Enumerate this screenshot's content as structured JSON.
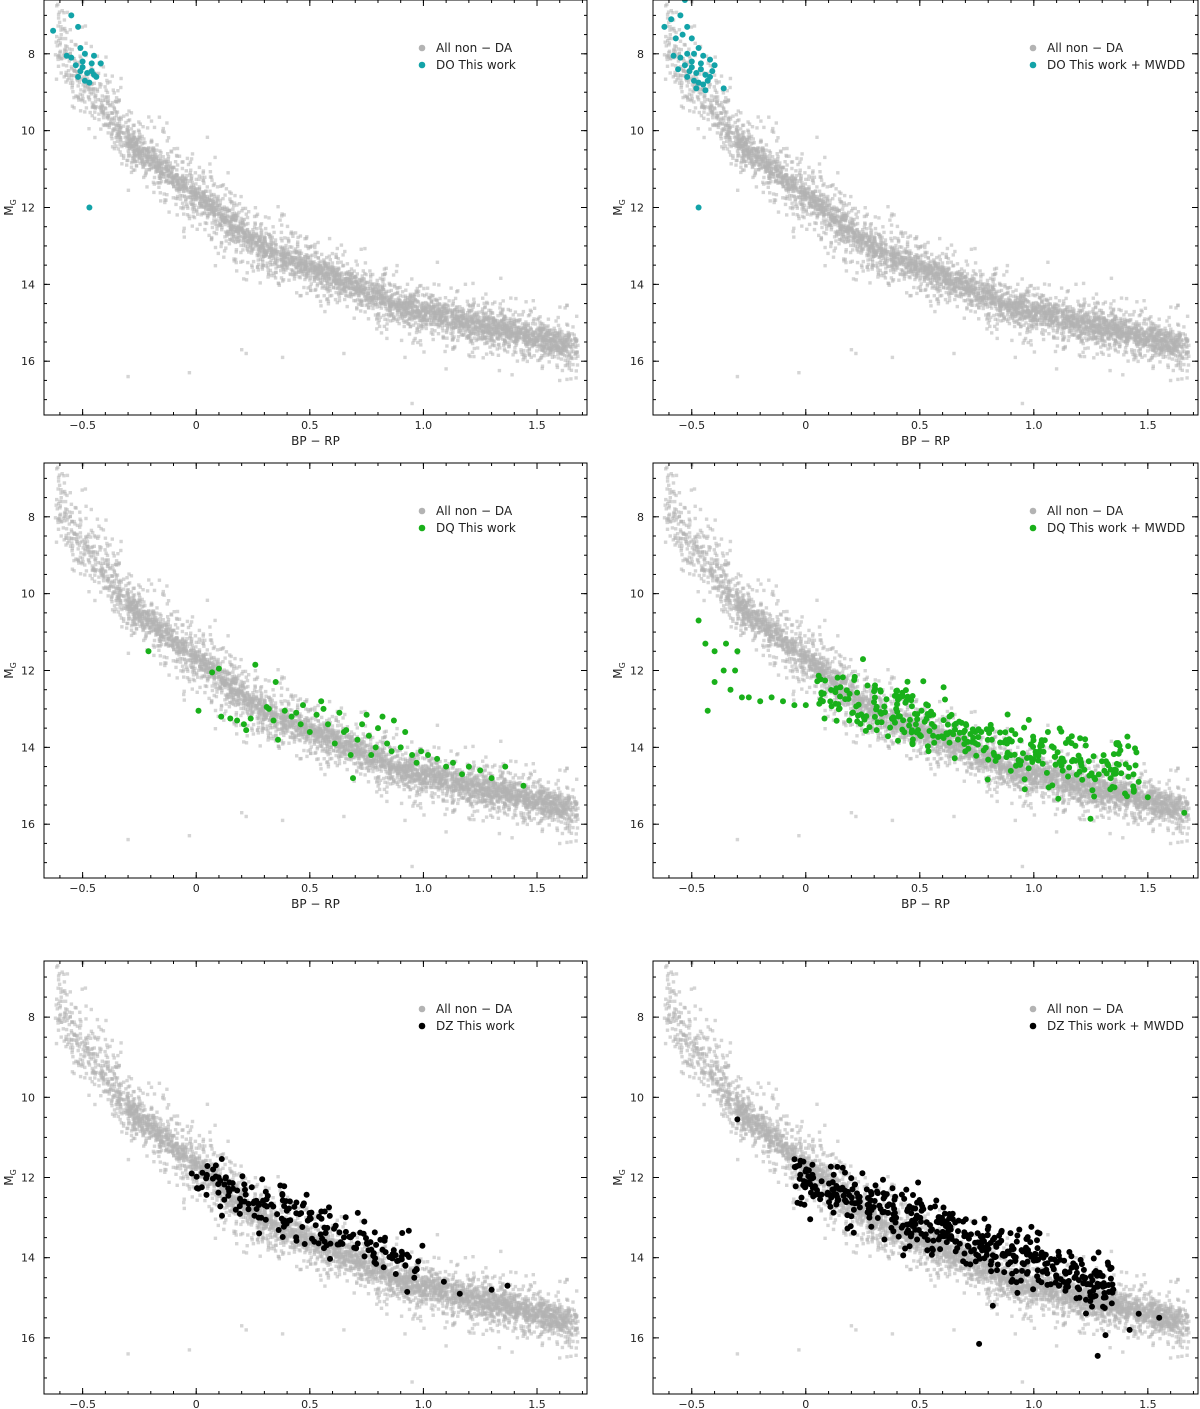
{
  "figure": {
    "colors": {
      "background_points": "#b3b3b3",
      "density_core": "#2b2b2b",
      "DO": "#13a3a8",
      "DQ": "#19b01a",
      "DZ": "#000000",
      "axes": "#000000"
    }
  },
  "chart_data": [
    {
      "id": "do-this-work",
      "type": "scatter",
      "xlabel": "BP − RP",
      "ylabel_main": "M",
      "ylabel_sub": "G",
      "xlim": [
        -0.67,
        1.72
      ],
      "ylim": [
        17.4,
        6.6
      ],
      "xticks": [
        -0.5,
        0,
        0.5,
        1.0,
        1.5
      ],
      "xtick_labels": [
        "−0.5",
        "0",
        "0.5",
        "1.0",
        "1.5"
      ],
      "yticks": [
        8,
        10,
        12,
        14,
        16
      ],
      "ytick_labels": [
        "8",
        "10",
        "12",
        "14",
        "16"
      ],
      "legend": [
        {
          "label": "All non − DA",
          "color": "#b3b3b3"
        },
        {
          "label": "DO  This work",
          "color": "#13a3a8"
        }
      ],
      "legend_position": "top-right",
      "highlight": {
        "class": "DO",
        "color": "#13a3a8",
        "points": [
          [
            -0.63,
            7.4
          ],
          [
            -0.55,
            7.0
          ],
          [
            -0.52,
            7.3
          ],
          [
            -0.57,
            8.05
          ],
          [
            -0.55,
            8.1
          ],
          [
            -0.51,
            7.85
          ],
          [
            -0.49,
            8.0
          ],
          [
            -0.45,
            8.05
          ],
          [
            -0.42,
            8.25
          ],
          [
            -0.53,
            8.3
          ],
          [
            -0.5,
            8.35
          ],
          [
            -0.48,
            8.5
          ],
          [
            -0.46,
            8.45
          ],
          [
            -0.44,
            8.6
          ],
          [
            -0.52,
            8.6
          ],
          [
            -0.49,
            8.7
          ],
          [
            -0.47,
            8.75
          ],
          [
            -0.45,
            8.55
          ],
          [
            -0.51,
            8.45
          ],
          [
            -0.46,
            8.25
          ],
          [
            -0.5,
            8.2
          ],
          [
            -0.47,
            12.0
          ]
        ]
      }
    },
    {
      "id": "do-this-work-mwdd",
      "type": "scatter",
      "xlabel": "BP − RP",
      "ylabel_main": "M",
      "ylabel_sub": "G",
      "xlim": [
        -0.67,
        1.72
      ],
      "ylim": [
        17.4,
        6.6
      ],
      "xticks": [
        -0.5,
        0,
        0.5,
        1.0,
        1.5
      ],
      "xtick_labels": [
        "−0.5",
        "0",
        "0.5",
        "1.0",
        "1.5"
      ],
      "yticks": [
        8,
        10,
        12,
        14,
        16
      ],
      "ytick_labels": [
        "8",
        "10",
        "12",
        "14",
        "16"
      ],
      "legend": [
        {
          "label": "All non − DA",
          "color": "#b3b3b3"
        },
        {
          "label": "DO  This work + MWDD",
          "color": "#13a3a8"
        }
      ],
      "legend_position": "top-right",
      "highlight": {
        "class": "DO",
        "color": "#13a3a8",
        "points": [
          [
            -0.53,
            6.6
          ],
          [
            -0.62,
            7.3
          ],
          [
            -0.59,
            7.1
          ],
          [
            -0.55,
            7.0
          ],
          [
            -0.52,
            7.3
          ],
          [
            -0.57,
            7.6
          ],
          [
            -0.54,
            7.5
          ],
          [
            -0.5,
            7.6
          ],
          [
            -0.47,
            7.85
          ],
          [
            -0.58,
            8.05
          ],
          [
            -0.55,
            8.1
          ],
          [
            -0.52,
            8.0
          ],
          [
            -0.49,
            8.0
          ],
          [
            -0.45,
            8.05
          ],
          [
            -0.42,
            8.15
          ],
          [
            -0.4,
            8.3
          ],
          [
            -0.53,
            8.3
          ],
          [
            -0.5,
            8.35
          ],
          [
            -0.48,
            8.5
          ],
          [
            -0.46,
            8.4
          ],
          [
            -0.44,
            8.55
          ],
          [
            -0.42,
            8.6
          ],
          [
            -0.52,
            8.6
          ],
          [
            -0.49,
            8.7
          ],
          [
            -0.47,
            8.75
          ],
          [
            -0.45,
            8.8
          ],
          [
            -0.43,
            8.7
          ],
          [
            -0.41,
            8.45
          ],
          [
            -0.51,
            8.45
          ],
          [
            -0.46,
            8.25
          ],
          [
            -0.5,
            8.2
          ],
          [
            -0.48,
            8.9
          ],
          [
            -0.44,
            8.95
          ],
          [
            -0.36,
            8.9
          ],
          [
            -0.56,
            8.4
          ],
          [
            -0.47,
            12.0
          ]
        ]
      }
    },
    {
      "id": "dq-this-work",
      "type": "scatter",
      "xlabel": "BP − RP",
      "ylabel_main": "M",
      "ylabel_sub": "G",
      "xlim": [
        -0.67,
        1.72
      ],
      "ylim": [
        17.4,
        6.6
      ],
      "xticks": [
        -0.5,
        0,
        0.5,
        1.0,
        1.5
      ],
      "xtick_labels": [
        "−0.5",
        "0",
        "0.5",
        "1.0",
        "1.5"
      ],
      "yticks": [
        8,
        10,
        12,
        14,
        16
      ],
      "ytick_labels": [
        "8",
        "10",
        "12",
        "14",
        "16"
      ],
      "legend": [
        {
          "label": "All non − DA",
          "color": "#b3b3b3"
        },
        {
          "label": "DQ  This work",
          "color": "#19b01a"
        }
      ],
      "legend_position": "top-right",
      "highlight": {
        "class": "DQ",
        "color": "#19b01a",
        "points": [
          [
            -0.21,
            11.5
          ],
          [
            0.07,
            12.05
          ],
          [
            0.1,
            11.95
          ],
          [
            0.01,
            13.05
          ],
          [
            0.11,
            13.2
          ],
          [
            0.15,
            13.25
          ],
          [
            0.18,
            13.3
          ],
          [
            0.21,
            13.4
          ],
          [
            0.22,
            13.55
          ],
          [
            0.24,
            13.25
          ],
          [
            0.26,
            11.85
          ],
          [
            0.31,
            12.95
          ],
          [
            0.32,
            13.0
          ],
          [
            0.35,
            12.3
          ],
          [
            0.34,
            13.3
          ],
          [
            0.36,
            13.8
          ],
          [
            0.39,
            13.05
          ],
          [
            0.42,
            13.2
          ],
          [
            0.44,
            13.1
          ],
          [
            0.46,
            13.4
          ],
          [
            0.47,
            12.9
          ],
          [
            0.5,
            13.6
          ],
          [
            0.53,
            13.15
          ],
          [
            0.55,
            12.8
          ],
          [
            0.56,
            13.0
          ],
          [
            0.58,
            13.4
          ],
          [
            0.61,
            13.9
          ],
          [
            0.63,
            13.1
          ],
          [
            0.65,
            13.6
          ],
          [
            0.66,
            13.55
          ],
          [
            0.68,
            14.2
          ],
          [
            0.69,
            14.8
          ],
          [
            0.71,
            13.8
          ],
          [
            0.73,
            13.4
          ],
          [
            0.75,
            13.15
          ],
          [
            0.76,
            13.7
          ],
          [
            0.77,
            14.2
          ],
          [
            0.79,
            14.0
          ],
          [
            0.8,
            13.5
          ],
          [
            0.82,
            13.2
          ],
          [
            0.84,
            13.9
          ],
          [
            0.86,
            14.1
          ],
          [
            0.87,
            13.3
          ],
          [
            0.9,
            14.0
          ],
          [
            0.92,
            13.6
          ],
          [
            0.95,
            14.2
          ],
          [
            0.97,
            14.4
          ],
          [
            0.99,
            14.1
          ],
          [
            1.02,
            14.2
          ],
          [
            1.06,
            14.3
          ],
          [
            1.1,
            14.5
          ],
          [
            1.13,
            14.4
          ],
          [
            1.17,
            14.7
          ],
          [
            1.2,
            14.5
          ],
          [
            1.25,
            14.6
          ],
          [
            1.3,
            14.8
          ],
          [
            1.36,
            14.5
          ],
          [
            1.44,
            15.0
          ]
        ]
      }
    },
    {
      "id": "dq-this-work-mwdd",
      "type": "scatter",
      "xlabel": "BP − RP",
      "ylabel_main": "M",
      "ylabel_sub": "G",
      "xlim": [
        -0.67,
        1.72
      ],
      "ylim": [
        17.4,
        6.6
      ],
      "xticks": [
        -0.5,
        0,
        0.5,
        1.0,
        1.5
      ],
      "xtick_labels": [
        "−0.5",
        "0",
        "0.5",
        "1.0",
        "1.5"
      ],
      "yticks": [
        8,
        10,
        12,
        14,
        16
      ],
      "ytick_labels": [
        "8",
        "10",
        "12",
        "14",
        "16"
      ],
      "legend": [
        {
          "label": "All non − DA",
          "color": "#b3b3b3"
        },
        {
          "label": "DQ  This work + MWDD",
          "color": "#19b01a"
        }
      ],
      "legend_position": "top-right",
      "highlight": {
        "class": "DQ",
        "color": "#19b01a",
        "points": [
          [
            -0.47,
            10.7
          ],
          [
            -0.4,
            11.5
          ],
          [
            -0.44,
            11.3
          ],
          [
            -0.3,
            11.5
          ],
          [
            -0.35,
            11.3
          ],
          [
            -0.36,
            12.0
          ],
          [
            -0.4,
            12.3
          ],
          [
            -0.33,
            12.5
          ],
          [
            -0.43,
            13.05
          ],
          [
            -0.28,
            12.7
          ],
          [
            -0.25,
            12.7
          ],
          [
            -0.2,
            12.8
          ],
          [
            -0.15,
            12.7
          ],
          [
            -0.1,
            12.8
          ],
          [
            -0.05,
            12.9
          ],
          [
            0.0,
            12.9
          ],
          [
            -0.31,
            12.0
          ],
          [
            1.66,
            15.7
          ],
          [
            1.5,
            15.3
          ],
          [
            1.46,
            14.9
          ],
          [
            1.4,
            15.2
          ]
        ],
        "cloud": {
          "count": 330,
          "x_range": [
            0.05,
            1.45
          ],
          "center_slope": 1.45,
          "center_intercept": 12.6,
          "spread": 0.42,
          "seed": 44
        }
      }
    },
    {
      "id": "dz-this-work",
      "type": "scatter",
      "xlabel": "BP − RP",
      "ylabel_main": "M",
      "ylabel_sub": "G",
      "xlim": [
        -0.67,
        1.72
      ],
      "ylim": [
        17.4,
        6.6
      ],
      "xticks": [
        -0.5,
        0,
        0.5,
        1.0,
        1.5
      ],
      "xtick_labels": [
        "−0.5",
        "0",
        "0.5",
        "1.0",
        "1.5"
      ],
      "yticks": [
        8,
        10,
        12,
        14,
        16
      ],
      "ytick_labels": [
        "8",
        "10",
        "12",
        "14",
        "16"
      ],
      "legend": [
        {
          "label": "All non − DA",
          "color": "#b3b3b3"
        },
        {
          "label": "DZ  This work",
          "color": "#000000"
        }
      ],
      "legend_position": "top-right",
      "highlight": {
        "class": "DZ",
        "color": "#000000",
        "points": [
          [
            -0.02,
            11.9
          ],
          [
            0.37,
            12.2
          ],
          [
            0.74,
            13.1
          ],
          [
            1.37,
            14.7
          ],
          [
            1.3,
            14.8
          ],
          [
            1.16,
            14.9
          ],
          [
            1.09,
            14.6
          ],
          [
            0.96,
            14.5
          ]
        ],
        "cloud": {
          "count": 190,
          "x_range": [
            0.0,
            1.0
          ],
          "center_slope": 2.25,
          "center_intercept": 12.0,
          "spread": 0.3,
          "seed": 101
        }
      }
    },
    {
      "id": "dz-this-work-mwdd",
      "type": "scatter",
      "xlabel": "BP − RP",
      "ylabel_main": "M",
      "ylabel_sub": "G",
      "xlim": [
        -0.67,
        1.72
      ],
      "ylim": [
        17.4,
        6.6
      ],
      "xticks": [
        -0.5,
        0,
        0.5,
        1.0,
        1.5
      ],
      "xtick_labels": [
        "−0.5",
        "0",
        "0.5",
        "1.0",
        "1.5"
      ],
      "yticks": [
        8,
        10,
        12,
        14,
        16
      ],
      "ytick_labels": [
        "8",
        "10",
        "12",
        "14",
        "16"
      ],
      "legend": [
        {
          "label": "All non − DA",
          "color": "#b3b3b3"
        },
        {
          "label": "DZ  This work + MWDD",
          "color": "#000000"
        }
      ],
      "legend_position": "top-right",
      "highlight": {
        "class": "DZ",
        "color": "#000000",
        "points": [
          [
            -0.3,
            10.55
          ],
          [
            0.76,
            16.15
          ],
          [
            1.28,
            16.45
          ],
          [
            1.42,
            15.8
          ],
          [
            1.55,
            15.5
          ],
          [
            1.46,
            15.4
          ],
          [
            0.82,
            15.2
          ],
          [
            0.97,
            14.4
          ],
          [
            1.11,
            14.7
          ],
          [
            1.2,
            15.0
          ],
          [
            0.69,
            13.1
          ]
        ],
        "cloud": {
          "count": 470,
          "x_range": [
            -0.05,
            1.35
          ],
          "center_slope": 2.0,
          "center_intercept": 12.1,
          "spread": 0.32,
          "seed": 7
        }
      }
    }
  ]
}
